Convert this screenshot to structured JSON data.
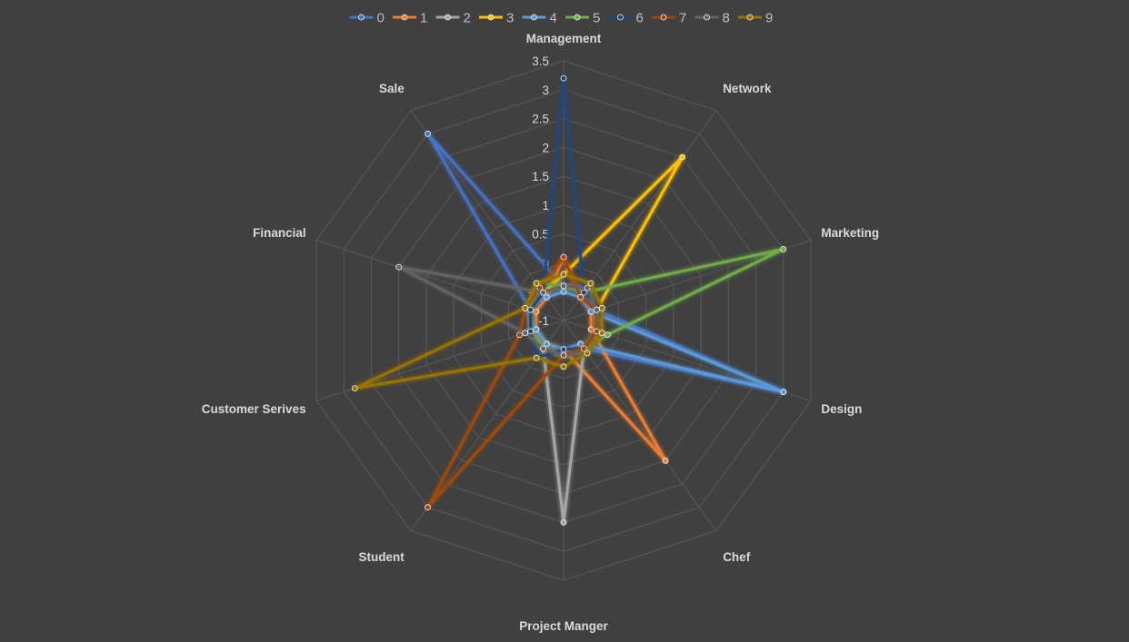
{
  "chart_data": {
    "type": "radar",
    "title": "",
    "categories": [
      "Management",
      "Network",
      "Marketing",
      "Design",
      "Chef",
      "Project Manger",
      "Student",
      "Customer Serives",
      "Financial",
      "Sale"
    ],
    "rlim": [
      -1,
      3.5
    ],
    "ticks": [
      "-1",
      "-0.5",
      "0",
      "0.5",
      "1",
      "1.5",
      "2",
      "2.5",
      "3",
      "3.5"
    ],
    "tick_values": [
      -1,
      -0.5,
      0,
      0.5,
      1,
      1.5,
      2,
      2.5,
      3,
      3.5
    ],
    "grid": true,
    "legend_position": "top",
    "series": [
      {
        "name": "0",
        "color": "#4472c4",
        "values": [
          -0.4,
          -0.4,
          -0.4,
          3.0,
          -0.4,
          -0.4,
          -0.4,
          -0.4,
          -0.4,
          3.0
        ]
      },
      {
        "name": "1",
        "color": "#ed7d31",
        "values": [
          0.1,
          -0.5,
          -0.5,
          -0.5,
          2.0,
          -0.5,
          -0.5,
          -0.5,
          -0.5,
          -0.5
        ]
      },
      {
        "name": "2",
        "color": "#a5a5a5",
        "values": [
          -0.4,
          -0.3,
          -0.4,
          -0.4,
          -0.4,
          2.5,
          -0.4,
          -0.4,
          -0.4,
          -0.4
        ]
      },
      {
        "name": "3",
        "color": "#ffc000",
        "values": [
          -0.2,
          2.5,
          -0.4,
          -0.4,
          -0.4,
          -0.4,
          -0.4,
          -0.4,
          -0.4,
          -0.4
        ]
      },
      {
        "name": "4",
        "color": "#5b9bd5",
        "values": [
          -0.5,
          -0.5,
          -0.5,
          3.0,
          -0.5,
          -0.5,
          -0.5,
          -0.5,
          -0.3,
          -0.5
        ]
      },
      {
        "name": "5",
        "color": "#70ad47",
        "values": [
          -0.4,
          -0.4,
          3.0,
          -0.2,
          -0.4,
          -0.4,
          -0.4,
          -0.4,
          -0.4,
          -0.2
        ]
      },
      {
        "name": "6",
        "color": "#264478",
        "values": [
          3.2,
          -0.4,
          -0.3,
          -0.4,
          -0.4,
          -0.5,
          -0.2,
          -0.4,
          -0.4,
          -0.4
        ]
      },
      {
        "name": "7",
        "color": "#9e480e",
        "values": [
          0.1,
          -0.5,
          -0.4,
          -0.4,
          -0.4,
          -0.4,
          3.0,
          -0.2,
          -0.3,
          -0.3
        ]
      },
      {
        "name": "8",
        "color": "#636363",
        "values": [
          -0.4,
          -0.3,
          -0.4,
          -0.3,
          -0.3,
          -0.4,
          -0.4,
          -0.3,
          2.0,
          -0.4
        ]
      },
      {
        "name": "9",
        "color": "#997300",
        "values": [
          -0.2,
          -0.2,
          -0.3,
          -0.3,
          -0.3,
          -0.2,
          -0.2,
          2.8,
          -0.3,
          -0.2
        ]
      }
    ]
  }
}
